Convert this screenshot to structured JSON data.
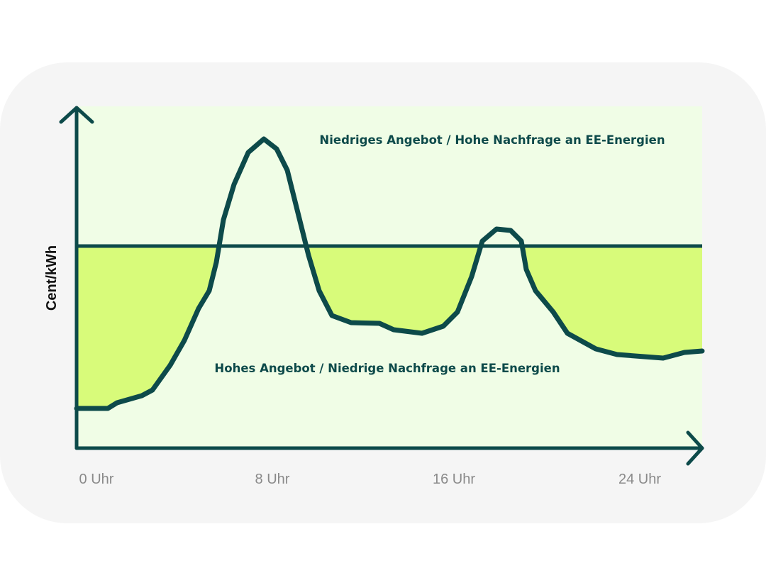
{
  "y_axis_label": "Cent/kWh",
  "x_labels": [
    "0 Uhr",
    "8 Uhr",
    "16 Uhr",
    "24 Uhr"
  ],
  "zones": {
    "upper": "Niedriges Angebot / Hohe Nachfrage an EE-Energien",
    "lower": "Hohes Angebot / Niedrige Nachfrage an EE-Energien"
  }
}
